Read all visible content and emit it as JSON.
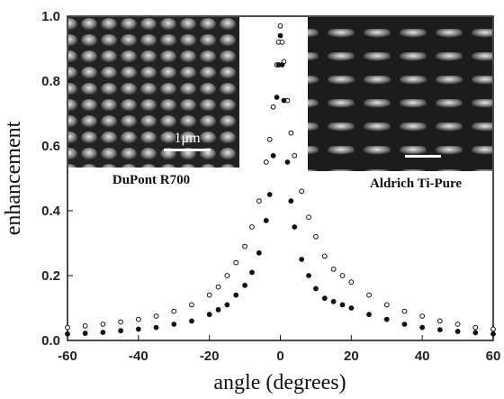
{
  "chart_data": {
    "type": "scatter",
    "xlabel": "angle (degrees)",
    "ylabel": "enhancement",
    "annotations": [
      "DuPont R700",
      "Aldrich Ti-Pure",
      "1μm"
    ],
    "xlim": [
      -60,
      60
    ],
    "ylim": [
      0,
      1
    ],
    "xticks": [
      -60,
      -40,
      -20,
      0,
      20,
      40,
      60
    ],
    "yticks": [
      {
        "value": 0,
        "label": "0.0"
      },
      0.2,
      0.4,
      0.6,
      0.8,
      {
        "value": 1,
        "label": "1.0"
      }
    ],
    "x": [
      -60,
      -55,
      -50,
      -45,
      -40,
      -35,
      -30,
      -25,
      -20,
      -17.5,
      -15,
      -12.5,
      -10,
      -8,
      -6,
      -4,
      -3,
      -2,
      -1,
      -0.5,
      0,
      0.5,
      1,
      2,
      3,
      4,
      6,
      8,
      10,
      12.5,
      15,
      17.5,
      20,
      25,
      30,
      35,
      40,
      45,
      50,
      55,
      60
    ],
    "series": [
      {
        "color": "#111111",
        "filled": false,
        "values": [
          0.04,
          0.045,
          0.05,
          0.057,
          0.065,
          0.075,
          0.09,
          0.11,
          0.14,
          0.165,
          0.2,
          0.24,
          0.29,
          0.35,
          0.43,
          0.55,
          0.62,
          0.72,
          0.85,
          0.92,
          0.97,
          0.92,
          0.86,
          0.74,
          0.64,
          0.57,
          0.46,
          0.38,
          0.32,
          0.26,
          0.22,
          0.2,
          0.18,
          0.14,
          0.11,
          0.09,
          0.075,
          0.06,
          0.05,
          0.04,
          0.035
        ]
      },
      {
        "color": "#111111",
        "filled": true,
        "values": [
          0.02,
          0.022,
          0.025,
          0.03,
          0.035,
          0.04,
          0.05,
          0.06,
          0.08,
          0.095,
          0.11,
          0.14,
          0.17,
          0.21,
          0.27,
          0.37,
          0.45,
          0.57,
          0.75,
          0.85,
          0.94,
          0.85,
          0.74,
          0.55,
          0.43,
          0.35,
          0.25,
          0.2,
          0.16,
          0.13,
          0.12,
          0.11,
          0.1,
          0.08,
          0.065,
          0.05,
          0.04,
          0.033,
          0.028,
          0.024,
          0.02
        ]
      }
    ]
  }
}
